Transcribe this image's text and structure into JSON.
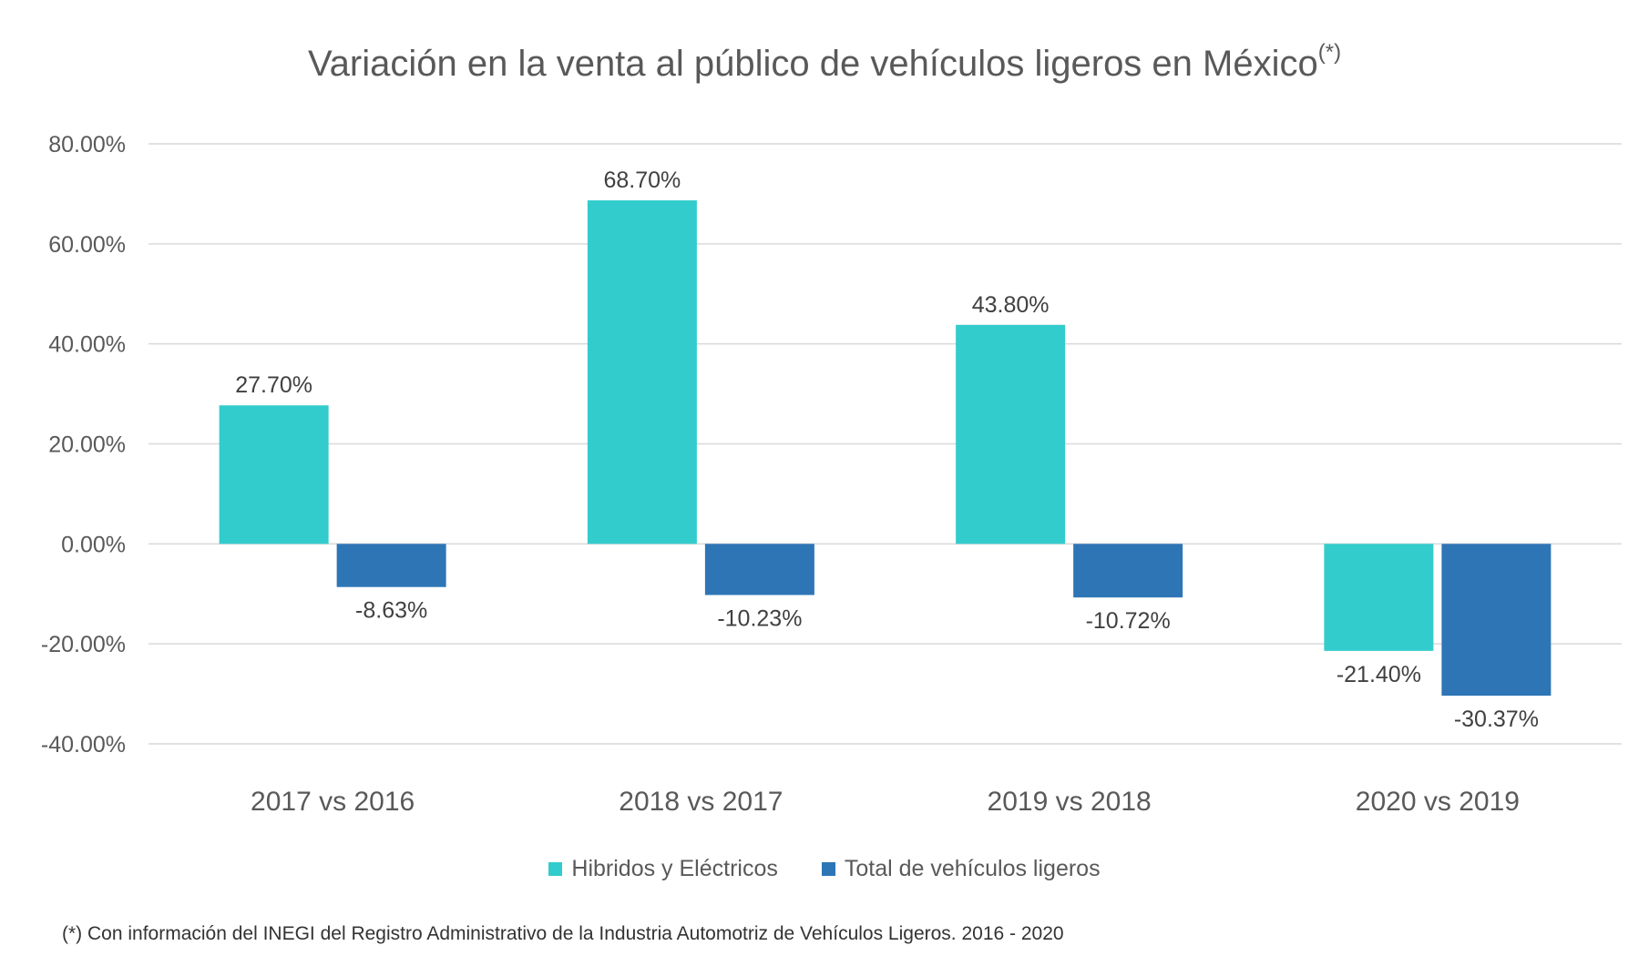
{
  "chart_data": {
    "type": "bar",
    "title": "Variación en la venta al público de vehículos ligeros en México",
    "title_superscript": "(*)",
    "categories": [
      "2017 vs 2016",
      "2018 vs 2017",
      "2019 vs 2018",
      "2020 vs 2019"
    ],
    "series": [
      {
        "name": "Hibridos y Eléctricos",
        "color": "#33CCCC",
        "values": [
          27.7,
          68.7,
          43.8,
          -21.4
        ],
        "labels": [
          "27.70%",
          "68.70%",
          "43.80%",
          "-21.40%"
        ]
      },
      {
        "name": "Total de vehículos ligeros",
        "color": "#2E75B6",
        "values": [
          -8.63,
          -10.23,
          -10.72,
          -30.37
        ],
        "labels": [
          "-8.63%",
          "-10.23%",
          "-10.72%",
          "-30.37%"
        ]
      }
    ],
    "ylim": [
      -40,
      80
    ],
    "yticks": [
      80,
      60,
      40,
      20,
      0,
      -20,
      -40
    ],
    "ytick_labels": [
      "80.00%",
      "60.00%",
      "40.00%",
      "20.00%",
      "0.00%",
      "-20.00%",
      "-40.00%"
    ],
    "grid": true,
    "legend_position": "bottom",
    "footnote": "(*) Con información del INEGI del Registro Administrativo de la Industria Automotriz de Vehículos Ligeros. 2016 - 2020"
  }
}
